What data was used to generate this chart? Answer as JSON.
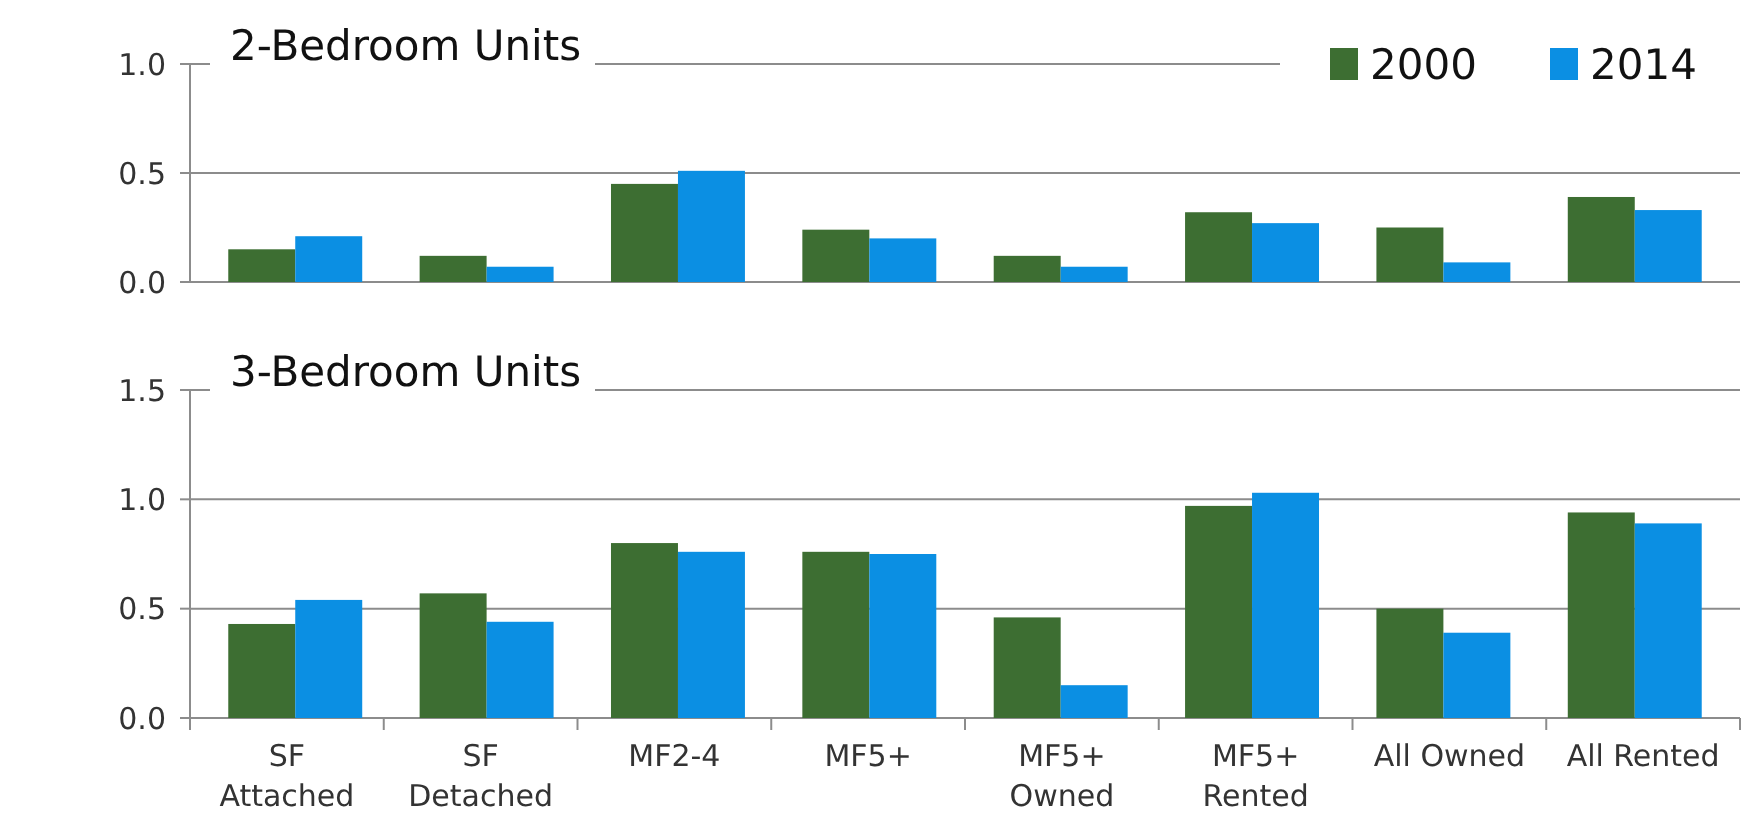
{
  "chart_data": [
    {
      "type": "bar",
      "title": "2-Bedroom Units",
      "categories": [
        null,
        null,
        null,
        null,
        null,
        null,
        null,
        null
      ],
      "ylim": [
        0,
        1
      ],
      "yticks": [
        {
          "value": 0,
          "label": "0.0"
        },
        {
          "value": 0.5,
          "label": "0.5"
        },
        {
          "value": 1,
          "label": "1.0"
        }
      ],
      "grid": "y",
      "legend": "top right",
      "tick_labels": "y",
      "series": [
        {
          "name": "2000",
          "color": "#3d6e32",
          "values": [
            0.15,
            0.12,
            0.45,
            0.24,
            0.12,
            0.32,
            0.25,
            0.39
          ]
        },
        {
          "name": "2014",
          "color": "#0b8fe3",
          "values": [
            0.21,
            0.07,
            0.51,
            0.2,
            0.07,
            0.27,
            0.09,
            0.33
          ]
        }
      ]
    },
    {
      "type": "bar",
      "title": "3-Bedroom Units",
      "categories": [
        "SF\nAttached",
        "SF\nDetached",
        "MF2-4",
        "MF5+",
        "MF5+\nOwned",
        "MF5+\nRented",
        "All Owned",
        "All Rented"
      ],
      "ylim": [
        0,
        1.5
      ],
      "yticks": [
        {
          "value": 0,
          "label": "0.0"
        },
        {
          "value": 0.5,
          "label": "0.5"
        },
        {
          "value": 1,
          "label": "1.0"
        },
        {
          "value": 1.5,
          "label": "1.5"
        }
      ],
      "grid": "y",
      "series": [
        {
          "color": "#3d6e32",
          "values": [
            0.43,
            0.57,
            0.8,
            0.76,
            0.46,
            0.97,
            0.5,
            0.94
          ]
        },
        {
          "color": "#0b8fe3",
          "values": [
            0.54,
            0.44,
            0.76,
            0.75,
            0.15,
            1.03,
            0.39,
            0.89
          ]
        }
      ]
    }
  ]
}
